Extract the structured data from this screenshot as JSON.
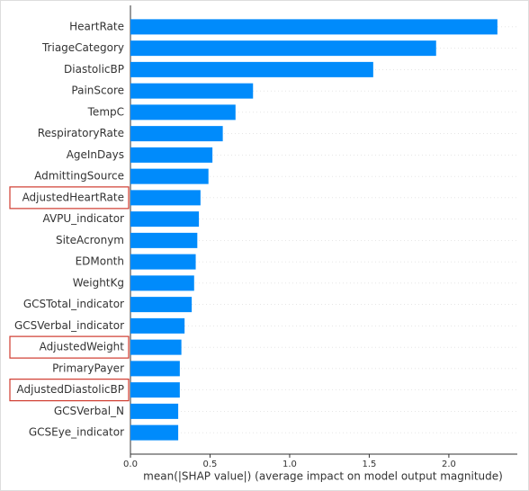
{
  "chart_data": {
    "type": "bar",
    "orientation": "horizontal",
    "x_label": "mean(|SHAP value|) (average impact on model output magnitude)",
    "categories": [
      "HeartRate",
      "TriageCategory",
      "DiastolicBP",
      "PainScore",
      "TempC",
      "RespiratoryRate",
      "AgeInDays",
      "AdmittingSource",
      "AdjustedHeartRate",
      "AVPU_indicator",
      "SiteAcronym",
      "EDMonth",
      "WeightKg",
      "GCSTotal_indicator",
      "GCSVerbal_indicator",
      "AdjustedWeight",
      "PrimaryPayer",
      "AdjustedDiastolicBP",
      "GCSVerbal_N",
      "GCSEye_indicator"
    ],
    "values": [
      2.305,
      1.92,
      1.525,
      0.77,
      0.66,
      0.58,
      0.515,
      0.49,
      0.44,
      0.43,
      0.42,
      0.41,
      0.4,
      0.385,
      0.34,
      0.32,
      0.31,
      0.31,
      0.3,
      0.3
    ],
    "color": "#008bfb",
    "highlight": [
      8,
      15,
      17
    ],
    "highlight_color": "#d03b2f",
    "xlim": [
      0,
      2.43
    ],
    "xticks": [
      {
        "value": 0,
        "label": "0.0"
      },
      0.5,
      {
        "value": 1,
        "label": "1.0"
      },
      1.5,
      {
        "value": 2,
        "label": "2.0"
      }
    ]
  }
}
